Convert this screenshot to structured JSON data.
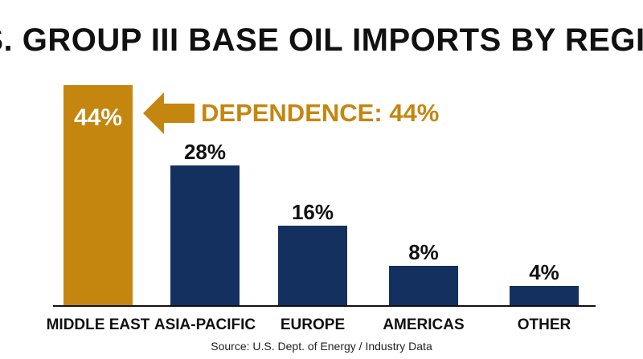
{
  "chart_data": {
    "type": "bar",
    "title": "U.S. GROUP III BASE OIL IMPORTS BY REGION",
    "categories": [
      "MIDDLE EAST",
      "ASIA-PACIFIC",
      "EUROPE",
      "AMERICAS",
      "OTHER"
    ],
    "values": [
      44,
      28,
      16,
      8,
      4
    ],
    "value_labels": [
      "44%",
      "28%",
      "16%",
      "8%",
      "4%"
    ],
    "highlight_index": 0,
    "annotation": "DEPENDENCE: 44%",
    "source": "Source: U.S. Dept. of Energy / Industry Data",
    "ylim": [
      0,
      44
    ],
    "grid": false,
    "colors": {
      "highlight": "#C5860F",
      "bar": "#14305E",
      "axis": "#111111"
    }
  }
}
